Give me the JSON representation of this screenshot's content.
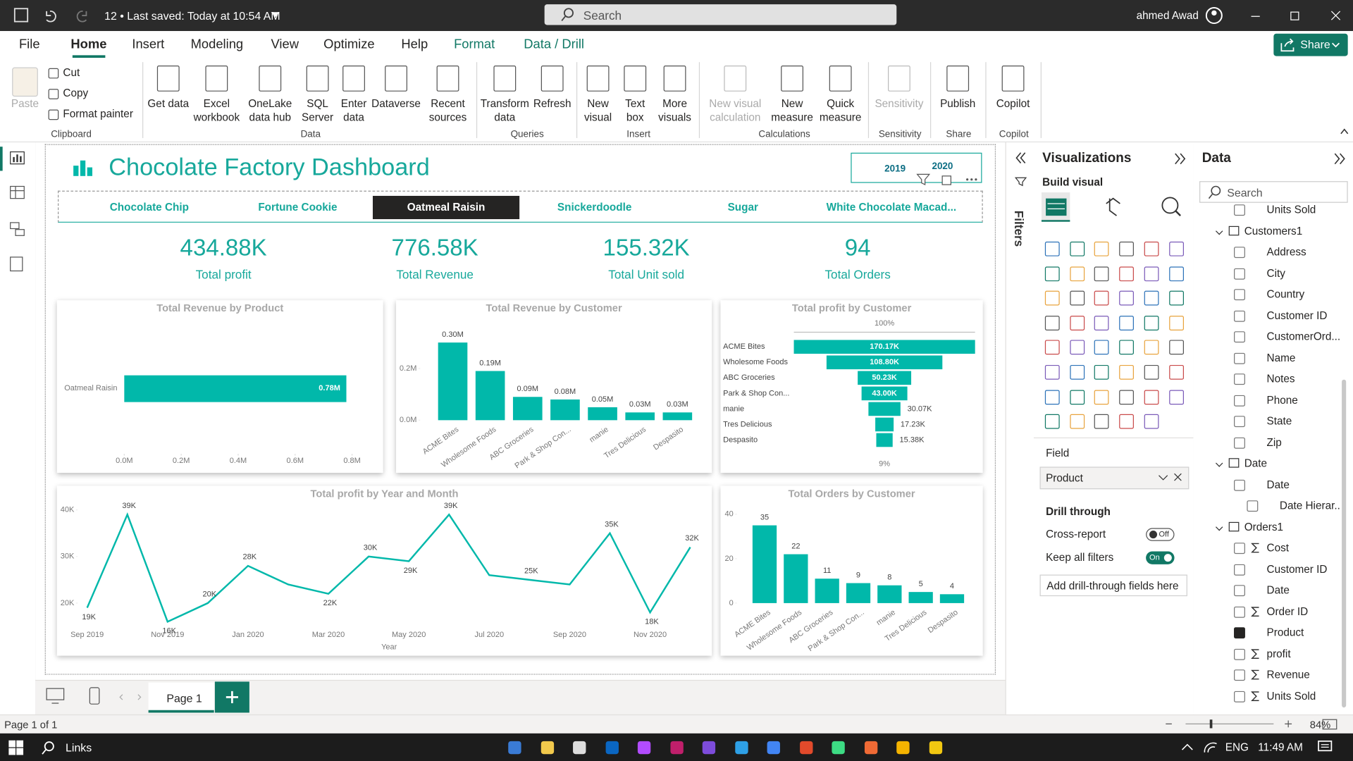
{
  "app": {
    "file_status": "12 • Last saved: Today at 10:54 AM",
    "search": "Search",
    "user": "ahmed Awad"
  },
  "ribbon": {
    "tabs": [
      "File",
      "Home",
      "Insert",
      "Modeling",
      "View",
      "Optimize",
      "Help",
      "Format",
      "Data / Drill"
    ],
    "share": "Share",
    "clipboard": {
      "name": "Clipboard",
      "paste": "Paste",
      "buttons": [
        "Cut",
        "Copy",
        "Format painter"
      ]
    },
    "groups": [
      {
        "name": "Data",
        "buttons": [
          "Get data",
          "Excel workbook",
          "OneLake data hub",
          "SQL Server",
          "Enter data",
          "Dataverse",
          "Recent sources"
        ]
      },
      {
        "name": "Queries",
        "buttons": [
          "Transform data",
          "Refresh"
        ]
      },
      {
        "name": "Insert",
        "buttons": [
          "New visual",
          "Text box",
          "More visuals"
        ]
      },
      {
        "name": "Calculations",
        "buttons": [
          "New visual calculation",
          "New measure",
          "Quick measure"
        ]
      },
      {
        "name": "Sensitivity",
        "buttons": [
          "Sensitivity"
        ]
      },
      {
        "name": "Share",
        "buttons": [
          "Publish"
        ]
      },
      {
        "name": "Copilot",
        "buttons": [
          "Copilot"
        ]
      }
    ]
  },
  "report": {
    "title": "Chocolate Factory Dashboard",
    "slicer": [
      "2019",
      "2020"
    ],
    "products": [
      "Chocolate Chip",
      "Fortune Cookie",
      "Oatmeal Raisin",
      "Snickerdoodle",
      "Sugar",
      "White Chocolate Macad..."
    ],
    "selected_product": "Oatmeal Raisin",
    "kpis": [
      {
        "value": "434.88K",
        "label": "Total profit"
      },
      {
        "value": "776.58K",
        "label": "Total Revenue"
      },
      {
        "value": "155.32K",
        "label": "Total Unit sold"
      },
      {
        "value": "94",
        "label": "Total Orders"
      }
    ],
    "charts": [
      {
        "type": "bar",
        "title": "Total Revenue by Product",
        "color": "#01b8aa",
        "categories": [
          "Oatmeal Raisin"
        ],
        "values": [
          0.78
        ],
        "value_labels": [
          "0.78M"
        ],
        "xlim": [
          0,
          0.8
        ],
        "xticks": [
          {
            "value": 0,
            "label": "0.0M"
          },
          {
            "value": 0.2,
            "label": "0.2M"
          },
          {
            "value": 0.4,
            "label": "0.4M"
          },
          {
            "value": 0.6,
            "label": "0.6M"
          },
          {
            "value": 0.8,
            "label": "0.8M"
          }
        ]
      },
      {
        "type": "column",
        "title": "Total Revenue by Customer",
        "color": "#01b8aa",
        "categories": [
          "ACME Bites",
          "Wholesome Foods",
          "ABC Groceries",
          "Park & Shop Con...",
          "manie",
          "Tres Delicious",
          "Despasito"
        ],
        "values": [
          0.3,
          0.19,
          0.09,
          0.08,
          0.05,
          0.03,
          0.03
        ],
        "value_labels": [
          "0.30M",
          "0.19M",
          "0.09M",
          "0.08M",
          "0.05M",
          "0.03M",
          "0.03M"
        ],
        "ylim": [
          0,
          0.3
        ],
        "yticks": [
          {
            "value": 0,
            "label": "0.0M"
          },
          {
            "value": 0.2,
            "label": "0.2M"
          }
        ]
      },
      {
        "type": "funnel",
        "title": "Total profit by Customer",
        "color": "#01b8aa",
        "categories": [
          "ACME Bites",
          "Wholesome Foods",
          "ABC Groceries",
          "Park & Shop Con...",
          "manie",
          "Tres Delicious",
          "Despasito"
        ],
        "values": [
          170.17,
          108.8,
          50.23,
          43.0,
          30.07,
          17.23,
          15.38
        ],
        "value_labels": [
          "170.17K",
          "108.80K",
          "50.23K",
          "43.00K",
          "30.07K",
          "17.23K",
          "15.38K"
        ],
        "top_label": "100%",
        "bottom_label": "9%"
      },
      {
        "type": "line",
        "title": "Total profit by Year and Month",
        "color": "#01b8aa",
        "x_label": "Year",
        "categories": [
          "Sep 2019",
          null,
          "Nov 2019",
          null,
          "Jan 2020",
          null,
          "Mar 2020",
          null,
          "May 2020",
          null,
          "Jul 2020",
          null,
          "Sep 2020",
          null,
          "Nov 2020",
          null
        ],
        "values": [
          19,
          39,
          16,
          20,
          28,
          24,
          22,
          30,
          29,
          39,
          26,
          25,
          24,
          35,
          18,
          32
        ],
        "value_labels": [
          "19K",
          "39K",
          "16K",
          "20K",
          "28K",
          null,
          "22K",
          "30K",
          "29K",
          "39K",
          null,
          "25K",
          null,
          "35K",
          "18K",
          "32K"
        ],
        "ylim": [
          15,
          40
        ],
        "yticks": [
          {
            "value": 20,
            "label": "20K"
          },
          {
            "value": 30,
            "label": "30K"
          },
          {
            "value": 40,
            "label": "40K"
          }
        ]
      },
      {
        "type": "column",
        "title": "Total Orders by Customer",
        "color": "#01b8aa",
        "categories": [
          "ACME Bites",
          "Wholesome Foods",
          "ABC Groceries",
          "Park & Shop Con...",
          "manie",
          "Tres Delicious",
          "Despasito"
        ],
        "values": [
          35,
          22,
          11,
          9,
          8,
          5,
          4
        ],
        "ylim": [
          0,
          40
        ],
        "yticks": [
          0,
          20,
          40
        ]
      }
    ]
  },
  "pages": {
    "tab": "Page 1",
    "status": "Page 1 of 1",
    "zoom": "84%"
  },
  "filters": {
    "title": "Filters"
  },
  "visualizations": {
    "title": "Visualizations",
    "build": "Build visual",
    "field_label": "Field",
    "field": "Product",
    "drill": "Drill through",
    "cross_report": "Cross-report",
    "cross_state": "Off",
    "keep_filters": "Keep all filters",
    "keep_state": "On",
    "add_fields": "Add drill-through fields here"
  },
  "data_pane": {
    "title": "Data",
    "search": "Search",
    "clipped": "Units Sold",
    "tables": [
      {
        "name": "Customers1",
        "fields": [
          {
            "name": "Address"
          },
          {
            "name": "City"
          },
          {
            "name": "Country"
          },
          {
            "name": "Customer ID"
          },
          {
            "name": "CustomerOrd..."
          },
          {
            "name": "Name"
          },
          {
            "name": "Notes"
          },
          {
            "name": "Phone"
          },
          {
            "name": "State"
          },
          {
            "name": "Zip"
          }
        ]
      },
      {
        "name": "Date",
        "fields": [
          {
            "name": "Date"
          },
          {
            "name": "Date Hierar..."
          }
        ]
      },
      {
        "name": "Orders1",
        "fields": [
          {
            "name": "Cost",
            "sum": true
          },
          {
            "name": "Customer ID"
          },
          {
            "name": "Date"
          },
          {
            "name": "Order ID",
            "sum": true
          },
          {
            "name": "Product",
            "checked": true
          },
          {
            "name": "profit",
            "sum": true
          },
          {
            "name": "Revenue",
            "sum": true
          },
          {
            "name": "Units Sold",
            "sum": true
          }
        ]
      }
    ]
  },
  "taskbar": {
    "search": "Links",
    "lang": "ENG",
    "time": "11:49 AM"
  }
}
